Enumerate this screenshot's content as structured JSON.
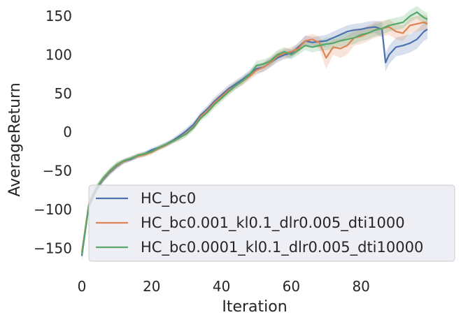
{
  "chart_data": {
    "type": "line",
    "xlabel": "Iteration",
    "ylabel": "AverageReturn",
    "xlim": [
      0,
      99
    ],
    "ylim": [
      -165,
      160
    ],
    "xticks": [
      0,
      20,
      40,
      60,
      80
    ],
    "yticks": [
      -150,
      -100,
      -50,
      0,
      50,
      100,
      150
    ],
    "grid": false,
    "legend_position": "lower-right",
    "series": [
      {
        "name": "HC_bc0",
        "color": "#4c72b0",
        "x": [
          0,
          2,
          4,
          6,
          8,
          10,
          12,
          14,
          16,
          18,
          20,
          22,
          24,
          26,
          28,
          30,
          32,
          34,
          36,
          38,
          40,
          42,
          44,
          46,
          48,
          50,
          52,
          54,
          56,
          58,
          60,
          62,
          64,
          66,
          68,
          70,
          72,
          74,
          76,
          78,
          80,
          82,
          84,
          86,
          87,
          88,
          90,
          92,
          94,
          96,
          98,
          99
        ],
        "y": [
          -160,
          -95,
          -75,
          -62,
          -52,
          -44,
          -38,
          -35,
          -31,
          -28,
          -23,
          -20,
          -16,
          -11,
          -5,
          2,
          10,
          22,
          30,
          40,
          48,
          56,
          62,
          68,
          75,
          82,
          84,
          90,
          96,
          100,
          102,
          110,
          118,
          116,
          117,
          118,
          122,
          126,
          130,
          132,
          133,
          135,
          136,
          133,
          90,
          100,
          110,
          112,
          115,
          120,
          130,
          133
        ],
        "band": [
          6,
          6,
          5,
          4,
          4,
          4,
          3,
          3,
          3,
          3,
          3,
          3,
          3,
          3,
          4,
          4,
          4,
          4,
          5,
          5,
          5,
          5,
          5,
          5,
          5,
          6,
          6,
          6,
          6,
          6,
          6,
          6,
          7,
          7,
          7,
          8,
          8,
          8,
          8,
          8,
          8,
          8,
          8,
          10,
          12,
          12,
          12,
          12,
          12,
          12,
          12,
          12
        ]
      },
      {
        "name": "HC_bc0.001_kl0.1_dlr0.005_dti1000",
        "color": "#dd8452",
        "x": [
          0,
          2,
          4,
          6,
          8,
          10,
          12,
          14,
          16,
          18,
          20,
          22,
          24,
          26,
          28,
          30,
          32,
          34,
          36,
          38,
          40,
          42,
          44,
          46,
          48,
          50,
          52,
          54,
          56,
          58,
          60,
          62,
          64,
          66,
          68,
          70,
          72,
          74,
          76,
          78,
          80,
          82,
          84,
          86,
          88,
          90,
          92,
          94,
          96,
          98,
          99
        ],
        "y": [
          -155,
          -93,
          -74,
          -61,
          -51,
          -43,
          -38,
          -34,
          -31,
          -29,
          -26,
          -21,
          -17,
          -12,
          -7,
          -1,
          7,
          20,
          28,
          38,
          46,
          54,
          60,
          66,
          72,
          80,
          84,
          90,
          98,
          102,
          104,
          108,
          118,
          120,
          116,
          96,
          110,
          108,
          112,
          122,
          124,
          128,
          132,
          134,
          136,
          130,
          128,
          138,
          140,
          142,
          140
        ],
        "band": [
          6,
          6,
          5,
          4,
          4,
          4,
          3,
          3,
          3,
          3,
          3,
          3,
          3,
          3,
          4,
          4,
          4,
          4,
          5,
          5,
          5,
          5,
          5,
          5,
          5,
          6,
          6,
          6,
          6,
          6,
          6,
          6,
          6,
          7,
          8,
          14,
          10,
          12,
          12,
          10,
          10,
          10,
          10,
          10,
          10,
          10,
          10,
          10,
          10,
          10,
          10
        ]
      },
      {
        "name": "HC_bc0.0001_kl0.1_dlr0.005_dti10000",
        "color": "#55a868",
        "x": [
          0,
          2,
          4,
          6,
          8,
          10,
          12,
          14,
          16,
          18,
          20,
          22,
          24,
          26,
          28,
          30,
          32,
          34,
          36,
          38,
          40,
          42,
          44,
          46,
          48,
          50,
          52,
          54,
          56,
          58,
          60,
          62,
          64,
          66,
          68,
          70,
          72,
          74,
          76,
          78,
          80,
          82,
          84,
          86,
          88,
          90,
          92,
          94,
          96,
          98,
          99
        ],
        "y": [
          -158,
          -94,
          -74,
          -60,
          -50,
          -42,
          -37,
          -34,
          -30,
          -28,
          -25,
          -20,
          -16,
          -12,
          -7,
          -2,
          6,
          18,
          26,
          36,
          44,
          52,
          60,
          66,
          74,
          86,
          88,
          92,
          100,
          104,
          100,
          106,
          112,
          110,
          112,
          114,
          115,
          118,
          120,
          122,
          126,
          128,
          132,
          134,
          138,
          140,
          142,
          150,
          155,
          148,
          146
        ],
        "band": [
          6,
          6,
          5,
          4,
          4,
          4,
          3,
          3,
          3,
          3,
          3,
          3,
          3,
          3,
          4,
          4,
          4,
          4,
          5,
          5,
          5,
          5,
          5,
          5,
          5,
          6,
          6,
          6,
          6,
          6,
          6,
          6,
          6,
          7,
          7,
          8,
          8,
          8,
          8,
          8,
          8,
          8,
          8,
          8,
          8,
          8,
          8,
          8,
          8,
          8,
          8
        ]
      }
    ]
  }
}
